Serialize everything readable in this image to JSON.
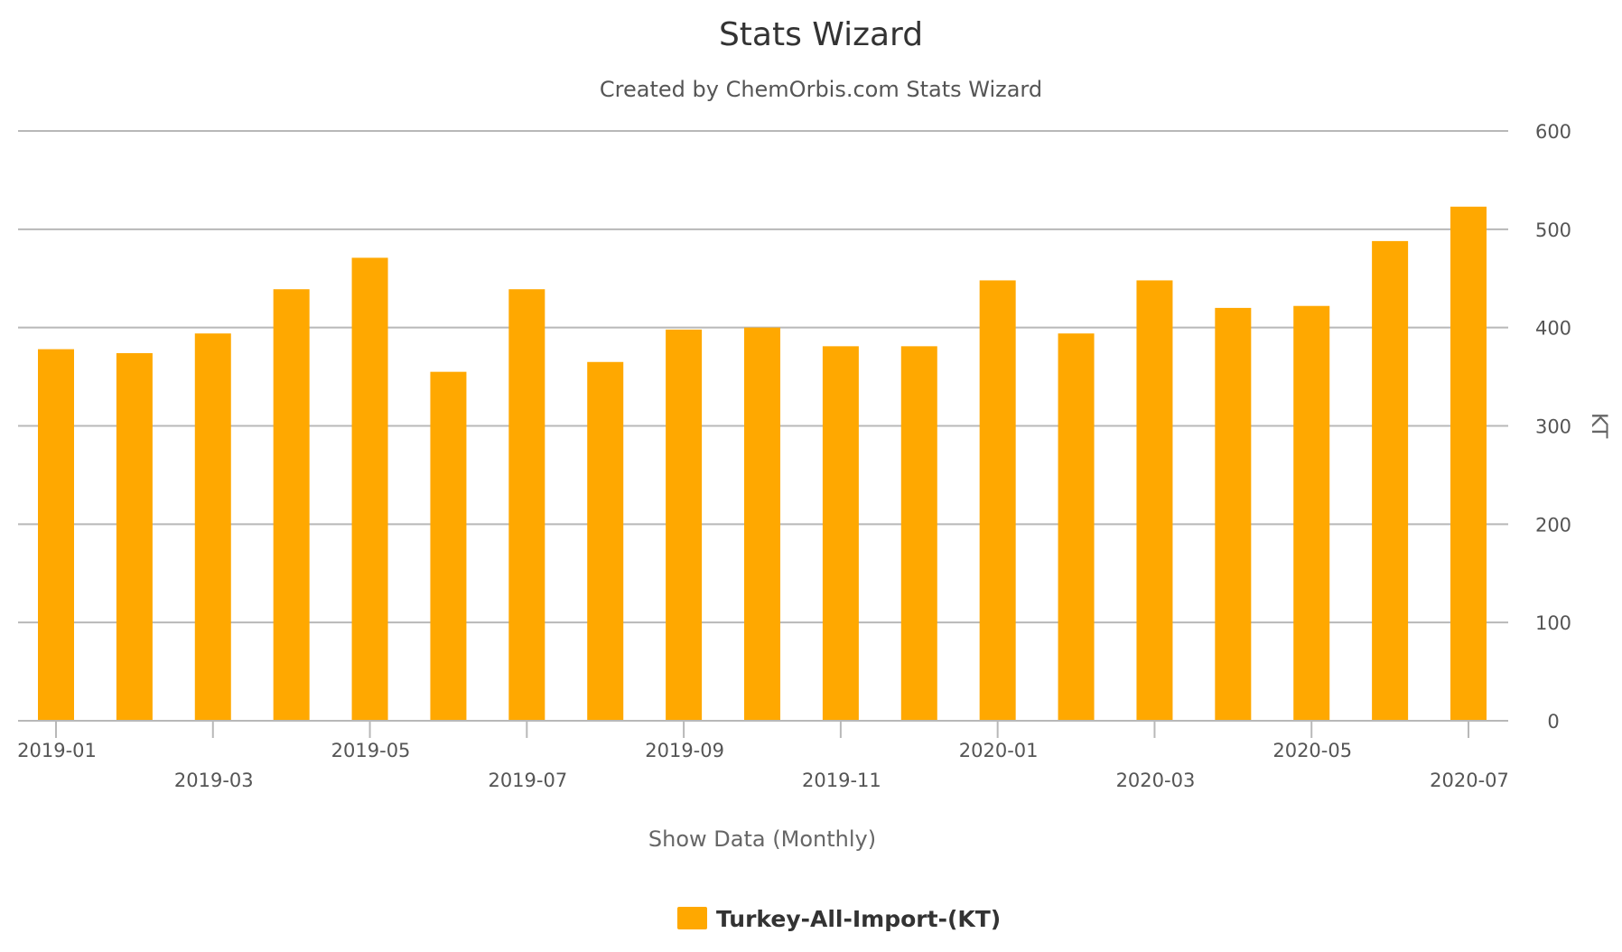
{
  "chart_data": {
    "type": "bar",
    "title": "Stats Wizard",
    "subtitle": "Created by ChemOrbis.com Stats Wizard",
    "xlabel": "Show Data (Monthly)",
    "ylabel": "KT",
    "ylim": [
      0,
      600
    ],
    "yticks": [
      "0",
      "100",
      "200",
      "300",
      "400",
      "500",
      "600"
    ],
    "y_axis_side": "right",
    "grid": true,
    "legend_position": "bottom-center",
    "categories": [
      "2019-01",
      "2019-02",
      "2019-03",
      "2019-04",
      "2019-05",
      "2019-06",
      "2019-07",
      "2019-08",
      "2019-09",
      "2019-10",
      "2019-11",
      "2019-12",
      "2020-01",
      "2020-02",
      "2020-03",
      "2020-04",
      "2020-05",
      "2020-06",
      "2020-07"
    ],
    "xtick_labels": [
      "2019-01",
      "2019-03",
      "2019-05",
      "2019-07",
      "2019-09",
      "2019-11",
      "2020-01",
      "2020-03",
      "2020-05",
      "2020-07"
    ],
    "series": [
      {
        "name": "Turkey-All-Import-(KT)",
        "color": "#FFA800",
        "values": [
          378,
          374,
          394,
          439,
          471,
          355,
          439,
          365,
          398,
          400,
          381,
          381,
          448,
          394,
          448,
          420,
          422,
          488,
          523
        ]
      }
    ]
  }
}
